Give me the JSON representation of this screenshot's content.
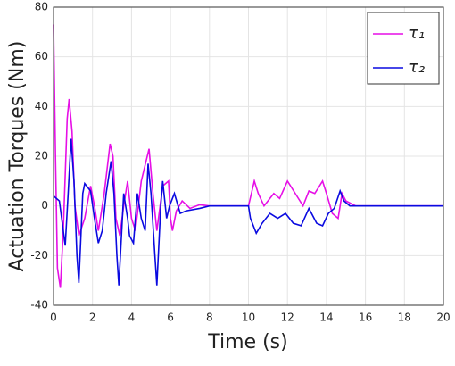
{
  "chart_data": {
    "type": "line",
    "xlabel": "Time (s)",
    "ylabel": "Actuation Torques (Nm)",
    "xlim": [
      0,
      20
    ],
    "xticks": [
      0,
      2,
      4,
      6,
      8,
      10,
      12,
      14,
      16,
      18,
      20
    ],
    "ylim": [
      -40,
      80
    ],
    "yticks": [
      -40,
      -20,
      0,
      20,
      40,
      60,
      80
    ],
    "grid": true,
    "legend": "upper right",
    "series": [
      {
        "name": "τ₁",
        "color": "#e60fe6",
        "x": [
          0,
          0.1,
          0.2,
          0.35,
          0.5,
          0.7,
          0.8,
          0.95,
          1.1,
          1.3,
          1.6,
          1.9,
          2.1,
          2.3,
          2.6,
          2.9,
          3.05,
          3.2,
          3.4,
          3.6,
          3.8,
          4.0,
          4.2,
          4.5,
          4.9,
          5.1,
          5.3,
          5.6,
          5.9,
          6.0,
          6.1,
          6.3,
          6.6,
          7,
          7.5,
          8,
          9,
          10,
          10.15,
          10.3,
          10.5,
          10.8,
          11.3,
          11.6,
          12,
          12.4,
          12.8,
          13.1,
          13.4,
          13.8,
          14.0,
          14.3,
          14.6,
          14.8,
          15,
          15.5,
          20
        ],
        "values": [
          73,
          20,
          -25,
          -33,
          -10,
          35,
          43,
          30,
          0,
          -12,
          -5,
          8,
          0,
          -10,
          5,
          25,
          20,
          -5,
          -12,
          0,
          10,
          -5,
          -10,
          10,
          23,
          5,
          -10,
          8,
          10,
          -5,
          -10,
          -2,
          2,
          -1,
          0.5,
          0,
          0,
          0,
          5,
          10,
          5,
          0,
          5,
          3,
          10,
          5,
          0,
          6,
          5,
          10,
          5,
          -3,
          -5,
          5,
          2,
          0,
          0
        ]
      },
      {
        "name": "τ₂",
        "color": "#0a0ae0",
        "x": [
          0,
          0.3,
          0.5,
          0.6,
          0.75,
          0.9,
          1.05,
          1.2,
          1.3,
          1.5,
          1.6,
          1.9,
          2.1,
          2.3,
          2.5,
          2.7,
          2.95,
          3.1,
          3.25,
          3.35,
          3.6,
          3.8,
          3.9,
          4.1,
          4.3,
          4.5,
          4.7,
          4.85,
          5.0,
          5.2,
          5.3,
          5.5,
          5.6,
          5.8,
          5.95,
          6.2,
          6.5,
          6.8,
          7.5,
          8,
          10,
          10.1,
          10.4,
          10.7,
          11.1,
          11.5,
          11.9,
          12.3,
          12.7,
          13.1,
          13.5,
          13.8,
          14.1,
          14.4,
          14.7,
          14.9,
          15.2,
          20
        ],
        "values": [
          4,
          2,
          -10,
          -16,
          5,
          27,
          10,
          -20,
          -31,
          5,
          9,
          6,
          -5,
          -15,
          -10,
          5,
          18,
          5,
          -20,
          -32,
          5,
          -5,
          -12,
          -15,
          5,
          -5,
          -10,
          17,
          5,
          -20,
          -32,
          0,
          10,
          -5,
          0,
          5,
          -3,
          -2,
          -1,
          0,
          0,
          -5,
          -11,
          -7,
          -3,
          -5,
          -3,
          -7,
          -8,
          -1,
          -7,
          -8,
          -3,
          -1,
          6,
          2,
          0,
          0
        ]
      }
    ]
  }
}
